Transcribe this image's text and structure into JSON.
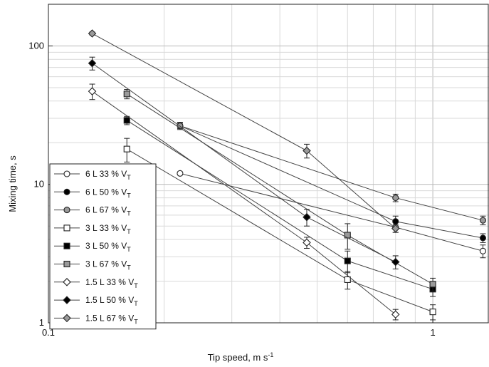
{
  "chart_data": {
    "type": "scatter",
    "xlabel": "Tip speed, m s",
    "xlabel_sup": "-1",
    "ylabel": "Mixing time, s",
    "xscale": "log",
    "yscale": "log",
    "xlim": [
      0.1,
      1.4
    ],
    "ylim": [
      1,
      200
    ],
    "x_ticks": [
      0.1,
      1
    ],
    "x_tick_labels": [
      "0.1",
      "1"
    ],
    "y_ticks": [
      1,
      10,
      100
    ],
    "y_tick_labels": [
      "1",
      "10",
      "100"
    ],
    "grid": true,
    "legend_position": "bottom-left",
    "series": [
      {
        "name": "6 L 33 % V",
        "sub": "T",
        "marker": "circle",
        "fill": "#ffffff",
        "points": [
          {
            "x": 0.22,
            "y": 12.0,
            "err": 0.3
          },
          {
            "x": 0.8,
            "y": 4.9,
            "err": 0.4
          },
          {
            "x": 1.35,
            "y": 3.3,
            "err": 0.35
          }
        ]
      },
      {
        "name": "6 L 50 % V",
        "sub": "T",
        "marker": "circle",
        "fill": "#000000",
        "points": [
          {
            "x": 0.22,
            "y": 26.5,
            "err": 1.2
          },
          {
            "x": 0.8,
            "y": 5.4,
            "err": 0.5
          },
          {
            "x": 1.35,
            "y": 4.1,
            "err": 0.3
          }
        ]
      },
      {
        "name": "6 L 67 % V",
        "sub": "T",
        "marker": "circle",
        "fill": "#9a9a9a",
        "points": [
          {
            "x": 0.22,
            "y": 26.5,
            "err": 1.6
          },
          {
            "x": 0.8,
            "y": 8.0,
            "err": 0.5
          },
          {
            "x": 1.35,
            "y": 5.5,
            "err": 0.4
          }
        ]
      },
      {
        "name": "3 L 33 % V",
        "sub": "T",
        "marker": "square",
        "fill": "#ffffff",
        "points": [
          {
            "x": 0.16,
            "y": 18.0,
            "err": 3.5
          },
          {
            "x": 0.6,
            "y": 2.05,
            "err": 0.3
          },
          {
            "x": 1.0,
            "y": 1.2,
            "err": 0.15
          }
        ]
      },
      {
        "name": "3 L 50 % V",
        "sub": "T",
        "marker": "square",
        "fill": "#000000",
        "points": [
          {
            "x": 0.16,
            "y": 29.0,
            "err": 2.0
          },
          {
            "x": 0.6,
            "y": 2.8,
            "err": 0.5
          },
          {
            "x": 1.0,
            "y": 1.75,
            "err": 0.2
          }
        ]
      },
      {
        "name": "3 L 67 % V",
        "sub": "T",
        "marker": "square",
        "fill": "#9a9a9a",
        "points": [
          {
            "x": 0.16,
            "y": 45.0,
            "err": 3.5
          },
          {
            "x": 0.6,
            "y": 4.3,
            "err": 0.9
          },
          {
            "x": 1.0,
            "y": 1.9,
            "err": 0.2
          }
        ]
      },
      {
        "name": "1.5 L 33 % V",
        "sub": "T",
        "marker": "diamond",
        "fill": "#ffffff",
        "points": [
          {
            "x": 0.13,
            "y": 47.0,
            "err": 6.0
          },
          {
            "x": 0.47,
            "y": 3.8,
            "err": 0.35
          },
          {
            "x": 0.8,
            "y": 1.15,
            "err": 0.1
          }
        ]
      },
      {
        "name": "1.5 L 50 % V",
        "sub": "T",
        "marker": "diamond",
        "fill": "#000000",
        "points": [
          {
            "x": 0.13,
            "y": 75.0,
            "err": 8.0
          },
          {
            "x": 0.47,
            "y": 5.8,
            "err": 0.8
          },
          {
            "x": 0.8,
            "y": 2.75,
            "err": 0.3
          }
        ]
      },
      {
        "name": "1.5 L 67 % V",
        "sub": "T",
        "marker": "diamond",
        "fill": "#9a9a9a",
        "points": [
          {
            "x": 0.13,
            "y": 123.0,
            "err": 3.0
          },
          {
            "x": 0.47,
            "y": 17.5,
            "err": 2.0
          },
          {
            "x": 0.8,
            "y": 4.8,
            "err": 0.3
          }
        ]
      }
    ]
  }
}
